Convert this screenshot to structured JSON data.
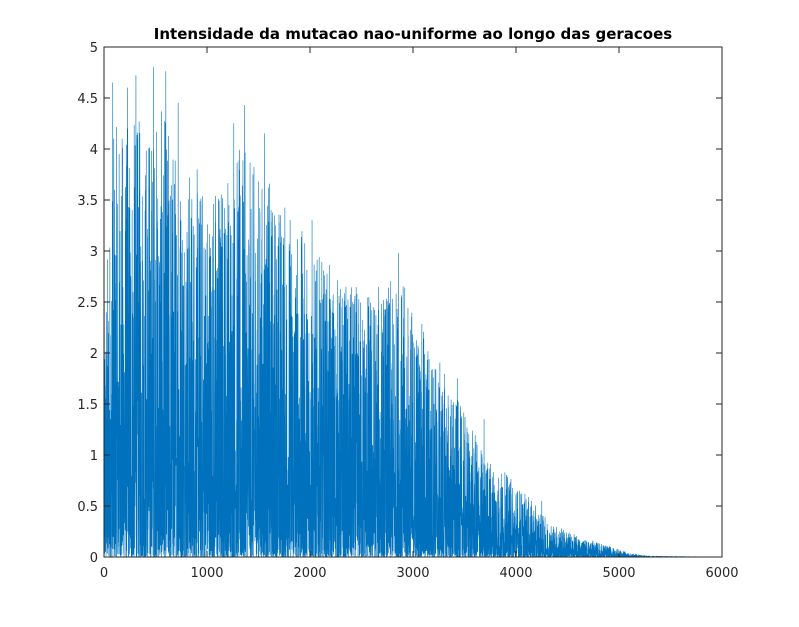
{
  "chart_data": {
    "type": "line",
    "title": "Intensidade da mutacao nao-uniforme ao longo das geracoes",
    "xlabel": "",
    "ylabel": "",
    "xlim": [
      0,
      6000
    ],
    "ylim": [
      0,
      5
    ],
    "x_ticks": [
      0,
      1000,
      2000,
      3000,
      4000,
      5000,
      6000
    ],
    "x_tick_labels": [
      "0",
      "1000",
      "2000",
      "3000",
      "4000",
      "5000",
      "6000"
    ],
    "y_ticks": [
      0,
      0.5,
      1,
      1.5,
      2,
      2.5,
      3,
      3.5,
      4,
      4.5,
      5
    ],
    "y_tick_labels": [
      "0",
      "0.5",
      "1",
      "1.5",
      "2",
      "2.5",
      "3",
      "3.5",
      "4",
      "4.5",
      "5"
    ],
    "grid": false,
    "series": [
      {
        "color": "#0072bd",
        "n_points": 6000,
        "x_step": 1,
        "envelope": {
          "x": [
            0,
            100,
            300,
            500,
            600,
            800,
            1000,
            1300,
            1500,
            1800,
            2000,
            2400,
            2900,
            3400,
            3700,
            4000,
            4300,
            4600,
            4900,
            5100,
            5300,
            6000
          ],
          "y_max": [
            2.7,
            4.6,
            4.7,
            4.8,
            4.75,
            4.3,
            4.05,
            4.4,
            4.15,
            3.8,
            3.3,
            2.9,
            2.95,
            1.75,
            1.1,
            0.8,
            0.4,
            0.22,
            0.12,
            0.04,
            0.01,
            0.0
          ]
        },
        "peaks": [
          {
            "x": 480,
            "y": 4.8
          },
          {
            "x": 600,
            "y": 4.76
          },
          {
            "x": 310,
            "y": 4.72
          },
          {
            "x": 85,
            "y": 4.65
          },
          {
            "x": 230,
            "y": 4.6
          },
          {
            "x": 1365,
            "y": 4.43
          },
          {
            "x": 720,
            "y": 4.45
          },
          {
            "x": 1560,
            "y": 4.15
          },
          {
            "x": 1260,
            "y": 4.25
          },
          {
            "x": 2020,
            "y": 3.3
          },
          {
            "x": 2860,
            "y": 2.98
          },
          {
            "x": 3430,
            "y": 1.75
          },
          {
            "x": 3690,
            "y": 1.35
          },
          {
            "x": 4250,
            "y": 0.55
          }
        ]
      }
    ]
  }
}
